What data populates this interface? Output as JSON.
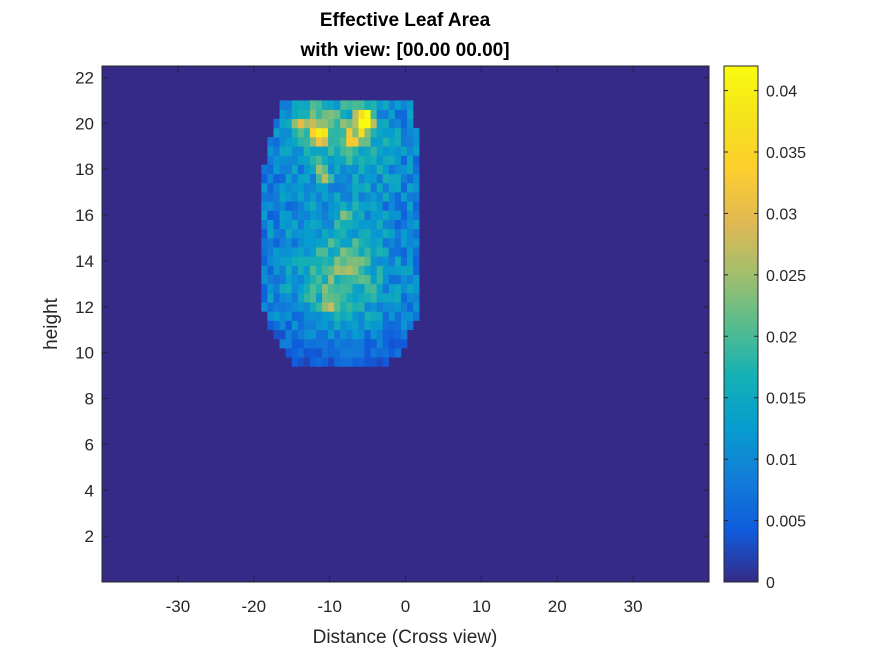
{
  "chart_data": {
    "type": "heatmap",
    "title": "Effective Leaf Area",
    "subtitle": "with view: [00.00 00.00]",
    "xlabel": "Distance (Cross view)",
    "ylabel": "height",
    "xlim": [
      -40,
      40
    ],
    "ylim": [
      0,
      22.5
    ],
    "xticks": [
      -30,
      -20,
      -10,
      0,
      10,
      20,
      30
    ],
    "yticks": [
      2,
      4,
      6,
      8,
      10,
      12,
      14,
      16,
      18,
      20,
      22
    ],
    "colorbar": {
      "colormap": "parula",
      "clim": [
        0,
        0.042
      ],
      "ticks": [
        0,
        0.005,
        0.01,
        0.015,
        0.02,
        0.025,
        0.03,
        0.035,
        0.04
      ],
      "tick_labels": [
        "0",
        "0.005",
        "0.01",
        "0.015",
        "0.02",
        "0.025",
        "0.03",
        "0.035",
        "0.04"
      ]
    },
    "grid": false,
    "canopy": {
      "x_extent": [
        -19,
        2
      ],
      "y_extent": [
        9.5,
        21
      ],
      "peak_value": 0.042,
      "peak_location": [
        -5,
        20.2
      ],
      "hotspots": [
        {
          "x": -5,
          "y": 20.2,
          "value": 0.042
        },
        {
          "x": -5.5,
          "y": 19.8,
          "value": 0.038
        },
        {
          "x": -11,
          "y": 19.5,
          "value": 0.036
        },
        {
          "x": -11.5,
          "y": 18,
          "value": 0.032
        },
        {
          "x": -10.5,
          "y": 17.6,
          "value": 0.03
        },
        {
          "x": -7,
          "y": 19.4,
          "value": 0.03
        },
        {
          "x": -12,
          "y": 19.7,
          "value": 0.028
        },
        {
          "x": -7.5,
          "y": 16,
          "value": 0.026
        },
        {
          "x": -6,
          "y": 20.4,
          "value": 0.03
        },
        {
          "x": -14,
          "y": 19.9,
          "value": 0.024
        },
        {
          "x": -7,
          "y": 14,
          "value": 0.022
        },
        {
          "x": -10,
          "y": 12.2,
          "value": 0.022
        }
      ]
    }
  }
}
